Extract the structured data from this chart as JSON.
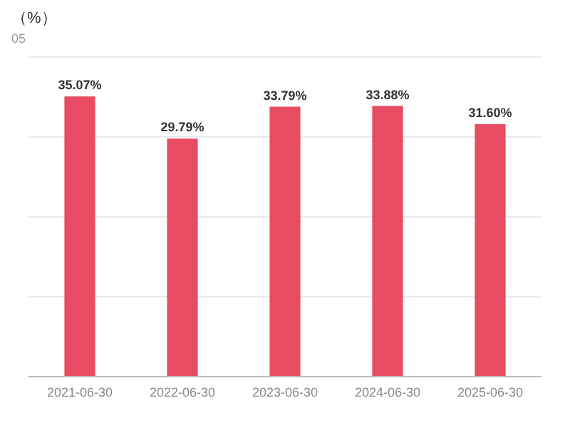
{
  "chart_data": {
    "type": "bar",
    "title": "（%）",
    "subtitle": "05",
    "categories": [
      "2021-06-30",
      "2022-06-30",
      "2023-06-30",
      "2024-06-30",
      "2025-06-30"
    ],
    "values": [
      35.07,
      29.79,
      33.79,
      33.88,
      31.6
    ],
    "value_labels": [
      "35.07%",
      "29.79%",
      "33.79%",
      "33.88%",
      "31.60%"
    ],
    "color": "#e84c62",
    "ylim": [
      0,
      40
    ],
    "yticks": [
      {
        "value": 0,
        "label": null
      },
      {
        "value": 10,
        "label": null
      },
      {
        "value": 20,
        "label": null
      },
      {
        "value": 30,
        "label": null
      },
      {
        "value": 40,
        "label": null
      }
    ],
    "tick_labels": "x",
    "grid": "y"
  }
}
